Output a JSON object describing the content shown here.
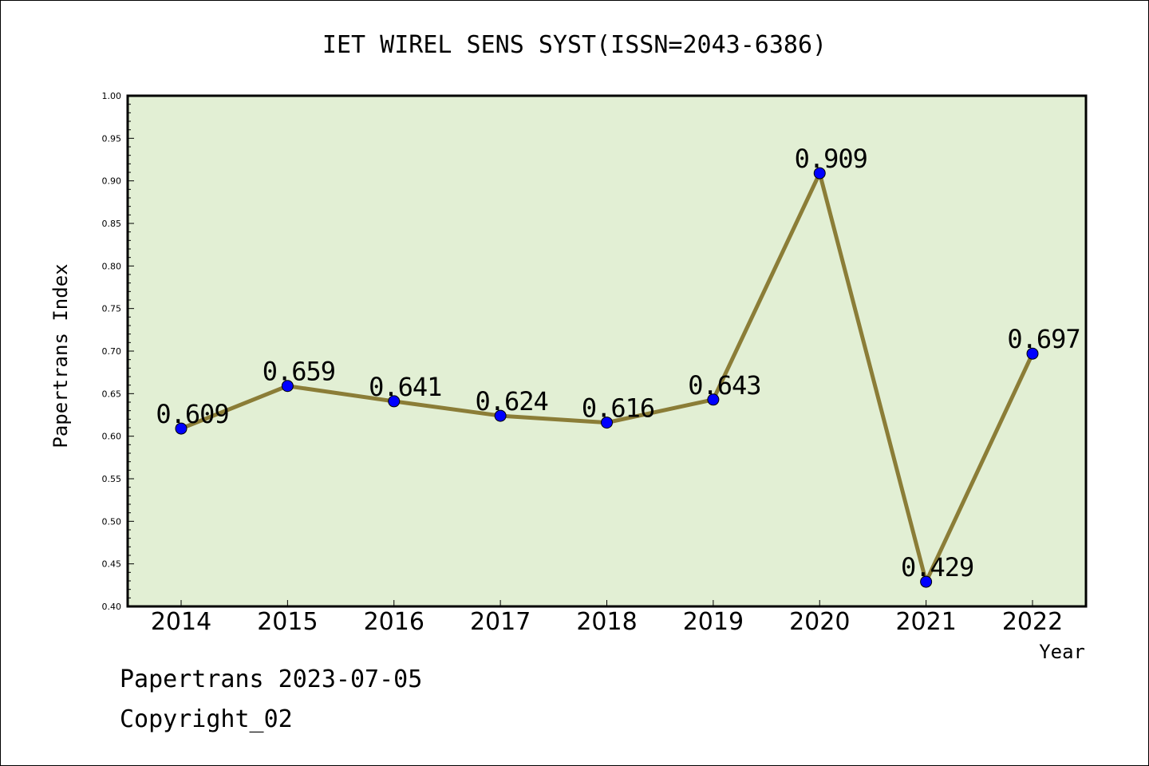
{
  "chart_data": {
    "type": "line",
    "title": "IET WIREL SENS SYST(ISSN=2043-6386)",
    "xlabel": "Year",
    "ylabel": "Papertrans Index",
    "categories": [
      "2014",
      "2015",
      "2016",
      "2017",
      "2018",
      "2019",
      "2020",
      "2021",
      "2022"
    ],
    "values": [
      0.609,
      0.659,
      0.641,
      0.624,
      0.616,
      0.643,
      0.909,
      0.429,
      0.697
    ],
    "data_labels": [
      "0.609",
      "0.659",
      "0.641",
      "0.624",
      "0.616",
      "0.643",
      "0.909",
      "0.429",
      "0.697"
    ],
    "ylim": [
      0.4,
      1.0
    ],
    "yticks": [
      "0.40",
      "0.45",
      "0.50",
      "0.55",
      "0.60",
      "0.65",
      "0.70",
      "0.75",
      "0.80",
      "0.85",
      "0.90",
      "0.95",
      "1.00"
    ],
    "grid": false,
    "legend": "none",
    "colors": {
      "plot_background": "#e2efd4",
      "line": "#8b7d37",
      "marker": "#0000ff"
    }
  },
  "footer": {
    "line1": "Papertrans 2023-07-05",
    "line2": "Copyright_02"
  }
}
